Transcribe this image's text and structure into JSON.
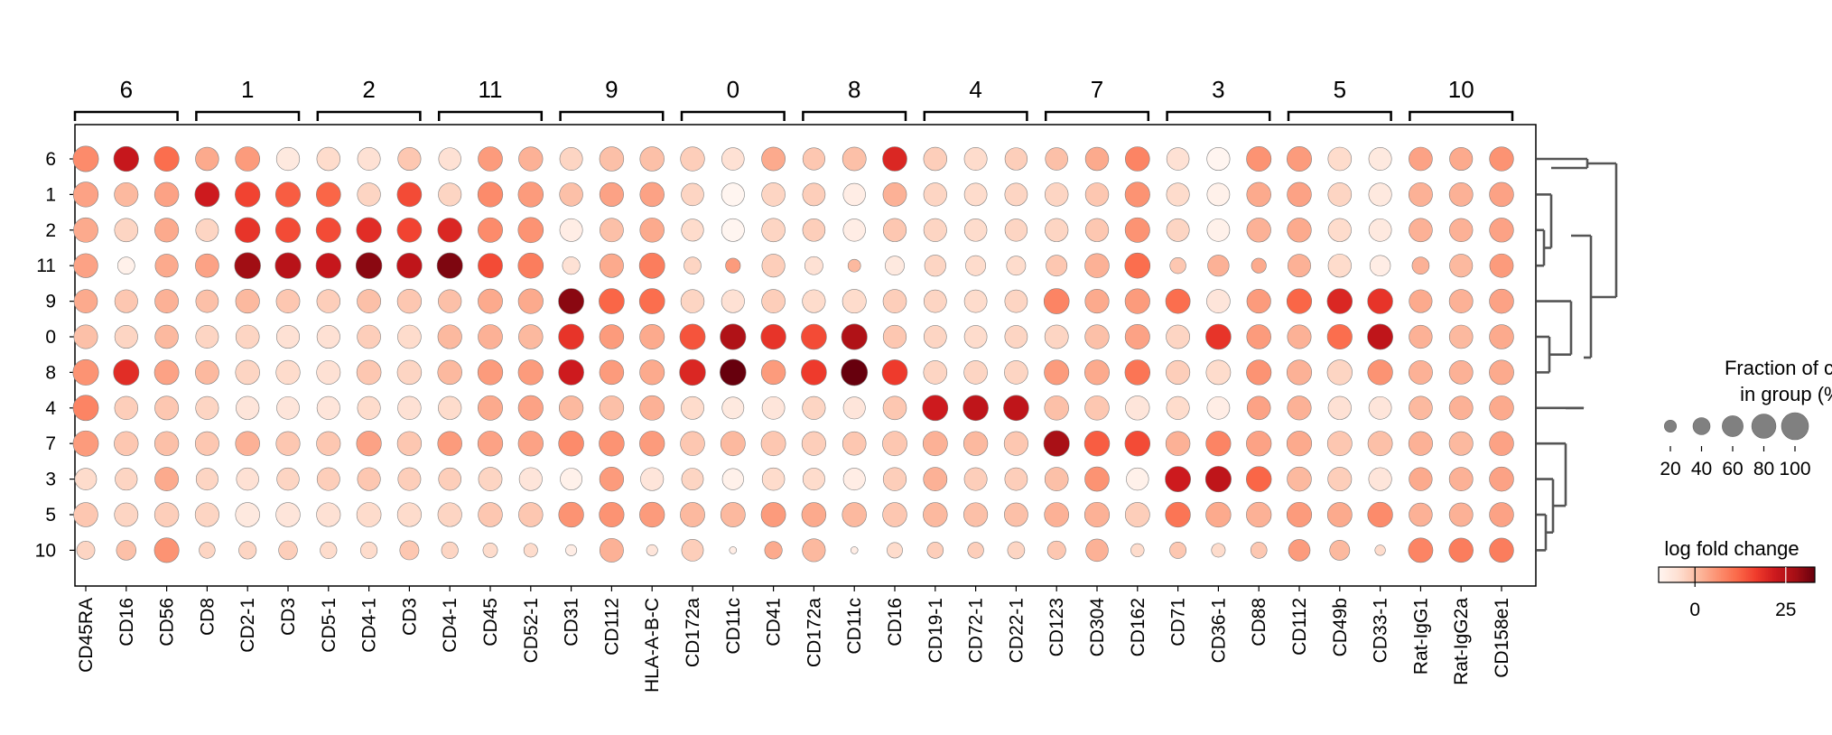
{
  "chart_data": {
    "type": "dotplot",
    "title": "",
    "row_groups": [
      "6",
      "1",
      "2",
      "11",
      "9",
      "0",
      "8",
      "4",
      "7",
      "3",
      "5",
      "10"
    ],
    "column_groups": [
      {
        "label": "6",
        "genes": [
          "CD45RA",
          "CD16",
          "CD56"
        ]
      },
      {
        "label": "1",
        "genes": [
          "CD8",
          "CD2-1",
          "CD3"
        ]
      },
      {
        "label": "2",
        "genes": [
          "CD5-1",
          "CD4-1",
          "CD3"
        ]
      },
      {
        "label": "11",
        "genes": [
          "CD4-1",
          "CD45",
          "CD52-1"
        ]
      },
      {
        "label": "9",
        "genes": [
          "CD31",
          "CD112",
          "HLA-A-B-C"
        ]
      },
      {
        "label": "0",
        "genes": [
          "CD172a",
          "CD11c",
          "CD41"
        ]
      },
      {
        "label": "8",
        "genes": [
          "CD172a",
          "CD11c",
          "CD16"
        ]
      },
      {
        "label": "4",
        "genes": [
          "CD19-1",
          "CD72-1",
          "CD22-1"
        ]
      },
      {
        "label": "7",
        "genes": [
          "CD123",
          "CD304",
          "CD162"
        ]
      },
      {
        "label": "3",
        "genes": [
          "CD71",
          "CD36-1",
          "CD88"
        ]
      },
      {
        "label": "5",
        "genes": [
          "CD112",
          "CD49b",
          "CD33-1"
        ]
      },
      {
        "label": "10",
        "genes": [
          "Rat-IgG1",
          "Rat-IgG2a",
          "CD158e1"
        ]
      }
    ],
    "color_legend": {
      "title": "log fold change",
      "ticks": [
        0,
        25
      ],
      "vmin": -10,
      "vmax": 33,
      "colormap": "Reds"
    },
    "size_legend": {
      "title_line1": "Fraction of cells",
      "title_line2": "in group (%)",
      "ticks": [
        20,
        40,
        60,
        80,
        100
      ]
    },
    "fraction": [
      [
        89,
        85,
        84,
        74,
        81,
        73,
        74,
        71,
        72,
        68,
        81,
        79,
        71,
        80,
        80,
        79,
        69,
        76,
        67,
        76,
        81,
        74,
        71,
        68,
        69,
        74,
        81,
        69,
        72,
        83,
        83,
        75,
        71,
        75,
        72,
        79
      ],
      [
        85,
        77,
        80,
        82,
        85,
        84,
        81,
        73,
        81,
        72,
        85,
        86,
        74,
        78,
        80,
        69,
        72,
        75,
        70,
        68,
        76,
        73,
        70,
        70,
        74,
        74,
        84,
        72,
        70,
        80,
        80,
        75,
        72,
        77,
        76,
        80
      ],
      [
        82,
        75,
        78,
        71,
        85,
        84,
        83,
        85,
        81,
        80,
        83,
        87,
        71,
        76,
        80,
        67,
        71,
        75,
        69,
        68,
        73,
        72,
        69,
        68,
        73,
        73,
        83,
        71,
        70,
        79,
        79,
        73,
        70,
        75,
        74,
        79
      ],
      [
        79,
        40,
        72,
        75,
        92,
        90,
        85,
        92,
        86,
        89,
        82,
        87,
        42,
        77,
        88,
        40,
        30,
        72,
        45,
        22,
        50,
        62,
        55,
        50,
        60,
        80,
        87,
        35,
        62,
        30,
        71,
        73,
        58,
        40,
        72,
        76
      ],
      [
        75,
        72,
        76,
        70,
        78,
        76,
        74,
        76,
        79,
        73,
        82,
        84,
        88,
        87,
        87,
        74,
        72,
        75,
        72,
        77,
        75,
        70,
        70,
        70,
        87,
        78,
        84,
        82,
        75,
        78,
        84,
        86,
        86,
        72,
        76,
        80
      ],
      [
        77,
        72,
        74,
        71,
        75,
        72,
        72,
        75,
        75,
        78,
        81,
        80,
        87,
        80,
        83,
        88,
        90,
        85,
        87,
        90,
        73,
        70,
        70,
        70,
        76,
        79,
        83,
        76,
        87,
        80,
        77,
        84,
        88,
        73,
        75,
        80
      ],
      [
        90,
        89,
        82,
        76,
        80,
        79,
        77,
        81,
        80,
        80,
        85,
        85,
        87,
        80,
        83,
        92,
        93,
        80,
        87,
        95,
        87,
        75,
        75,
        75,
        83,
        83,
        86,
        78,
        82,
        84,
        84,
        85,
        85,
        77,
        76,
        82
      ],
      [
        88,
        74,
        77,
        72,
        73,
        70,
        72,
        72,
        74,
        73,
        83,
        84,
        79,
        80,
        82,
        71,
        65,
        70,
        72,
        66,
        75,
        88,
        87,
        87,
        80,
        80,
        79,
        72,
        70,
        75,
        78,
        73,
        70,
        75,
        76,
        80
      ],
      [
        88,
        79,
        79,
        77,
        80,
        78,
        78,
        84,
        79,
        80,
        85,
        85,
        86,
        86,
        85,
        80,
        82,
        82,
        78,
        75,
        82,
        82,
        79,
        78,
        90,
        86,
        86,
        80,
        84,
        85,
        84,
        82,
        82,
        78,
        77,
        80
      ],
      [
        64,
        67,
        76,
        66,
        68,
        68,
        71,
        72,
        71,
        69,
        76,
        72,
        65,
        79,
        72,
        65,
        62,
        69,
        66,
        66,
        73,
        76,
        71,
        70,
        75,
        81,
        68,
        88,
        90,
        86,
        80,
        77,
        72,
        73,
        76,
        80
      ],
      [
        80,
        76,
        80,
        78,
        80,
        80,
        78,
        81,
        78,
        78,
        80,
        80,
        85,
        84,
        85,
        82,
        82,
        82,
        80,
        80,
        80,
        80,
        78,
        76,
        81,
        84,
        82,
        85,
        85,
        85,
        84,
        82,
        85,
        74,
        76,
        80
      ],
      [
        45,
        53,
        83,
        35,
        42,
        48,
        38,
        38,
        50,
        38,
        29,
        26,
        17,
        77,
        17,
        65,
        7,
        42,
        72,
        7,
        33,
        36,
        35,
        40,
        46,
        69,
        24,
        37,
        26,
        36,
        64,
        55,
        15,
        82,
        80,
        80
      ]
    ],
    "logfc": [
      [
        7,
        23,
        11,
        3,
        5,
        -7,
        -4,
        -5,
        -1,
        -5,
        5,
        2,
        -3,
        0,
        0,
        -2,
        -5,
        3,
        -1,
        0,
        20,
        -2,
        -4,
        -2,
        0,
        3,
        8,
        -5,
        -10,
        6,
        5,
        -4,
        -7,
        4,
        3,
        6
      ],
      [
        4,
        1,
        4,
        22,
        16,
        13,
        12,
        -3,
        15,
        -3,
        7,
        5,
        0,
        4,
        4,
        -3,
        -10,
        -3,
        -2,
        -8,
        2,
        -3,
        -4,
        -3,
        -3,
        -1,
        6,
        -4,
        -9,
        3,
        4,
        -3,
        -7,
        2,
        2,
        4
      ],
      [
        3,
        -3,
        3,
        -3,
        18,
        15,
        15,
        19,
        16,
        20,
        7,
        6,
        -8,
        0,
        3,
        -4,
        -10,
        -3,
        -2,
        -8,
        -1,
        -3,
        -4,
        -3,
        -3,
        -1,
        6,
        -3,
        -9,
        2,
        3,
        -4,
        -7,
        2,
        2,
        4
      ],
      [
        4,
        -9,
        3,
        4,
        28,
        25,
        23,
        30,
        24,
        31,
        15,
        9,
        -5,
        3,
        9,
        -3,
        5,
        -2,
        -5,
        1,
        -7,
        -3,
        -4,
        -4,
        -1,
        2,
        11,
        -1,
        2,
        3,
        2,
        -4,
        -8,
        2,
        1,
        5
      ],
      [
        3,
        -1,
        2,
        0,
        1,
        -1,
        -2,
        0,
        -1,
        0,
        3,
        3,
        30,
        12,
        11,
        -3,
        -5,
        -2,
        -4,
        -4,
        -2,
        -3,
        -4,
        -3,
        8,
        3,
        5,
        11,
        -6,
        5,
        12,
        20,
        18,
        3,
        2,
        4
      ],
      [
        0,
        -3,
        1,
        -3,
        -3,
        -5,
        -5,
        -2,
        -4,
        1,
        2,
        1,
        18,
        5,
        3,
        14,
        26,
        18,
        15,
        26,
        -1,
        -3,
        -4,
        -3,
        -3,
        0,
        4,
        -3,
        18,
        5,
        2,
        11,
        24,
        2,
        1,
        3
      ],
      [
        6,
        19,
        4,
        1,
        -3,
        -4,
        -5,
        -1,
        -3,
        1,
        5,
        5,
        22,
        5,
        3,
        20,
        34,
        5,
        17,
        34,
        17,
        -3,
        -3,
        -3,
        5,
        3,
        10,
        -2,
        -4,
        6,
        2,
        -3,
        6,
        2,
        2,
        3
      ],
      [
        8,
        -2,
        -1,
        -3,
        -6,
        -6,
        -6,
        -4,
        -5,
        -4,
        3,
        4,
        1,
        0,
        2,
        -4,
        -7,
        -6,
        -3,
        -6,
        -1,
        22,
        24,
        24,
        0,
        -1,
        -6,
        -4,
        -8,
        4,
        2,
        -5,
        -6,
        1,
        2,
        3
      ],
      [
        5,
        -1,
        0,
        -1,
        2,
        -1,
        -1,
        4,
        -1,
        5,
        4,
        4,
        7,
        6,
        5,
        -1,
        1,
        -1,
        -2,
        -1,
        -1,
        2,
        1,
        -1,
        27,
        13,
        15,
        2,
        8,
        4,
        3,
        -1,
        0,
        2,
        1,
        4
      ],
      [
        -4,
        -3,
        3,
        -3,
        -5,
        -3,
        -2,
        -1,
        -2,
        -2,
        -3,
        -6,
        -9,
        5,
        -6,
        -3,
        -9,
        -4,
        -4,
        -8,
        -2,
        2,
        -2,
        -2,
        0,
        6,
        -9,
        22,
        24,
        12,
        1,
        -2,
        -6,
        3,
        2,
        4
      ],
      [
        -1,
        -3,
        -2,
        -3,
        -7,
        -6,
        -5,
        -4,
        -4,
        -3,
        -1,
        -1,
        6,
        6,
        5,
        1,
        1,
        5,
        3,
        1,
        -1,
        1,
        0,
        0,
        2,
        2,
        -2,
        10,
        3,
        2,
        5,
        3,
        7,
        2,
        2,
        4
      ],
      [
        -3,
        0,
        6,
        -3,
        -3,
        -2,
        -4,
        -4,
        -1,
        -3,
        -4,
        -4,
        -8,
        2,
        -6,
        -2,
        -8,
        3,
        1,
        -8,
        -4,
        -2,
        -2,
        -3,
        -1,
        2,
        -4,
        -1,
        -4,
        -1,
        5,
        1,
        -4,
        8,
        9,
        9
      ]
    ],
    "dendrogram_leaf_order": [
      "6",
      "1",
      "2",
      "11",
      "9",
      "0",
      "8",
      "4",
      "7",
      "3",
      "5",
      "10"
    ]
  },
  "colors": {
    "cmap_stops": [
      "#fff5f0",
      "#fee0d2",
      "#fcbba1",
      "#fc9272",
      "#fb6a4a",
      "#ef3b2c",
      "#cb181d",
      "#a50f15",
      "#67000d"
    ],
    "marker_edge": "#808080",
    "legend_dot": "#808080",
    "dendrogram": "#555555",
    "frame": "#000000"
  }
}
